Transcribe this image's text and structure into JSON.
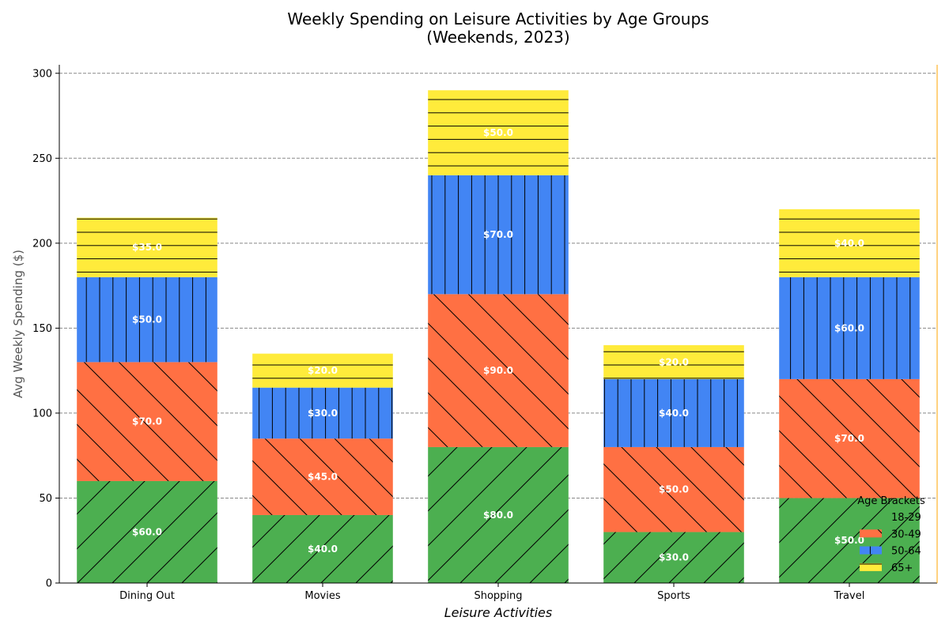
{
  "chart_data": {
    "type": "bar",
    "stacked": true,
    "title": "Weekly Spending on Leisure Activities by Age Groups",
    "subtitle": "(Weekends, 2023)",
    "xlabel": "Leisure Activities",
    "ylabel": "Avg Weekly Spending ($)",
    "ylim": [
      0,
      305
    ],
    "yticks": [
      0,
      50,
      100,
      150,
      200,
      250,
      300
    ],
    "grid": "horizontal-dashed",
    "legend_title": "Age Brackets",
    "legend_position": "lower-right",
    "categories": [
      "Dining Out",
      "Movies",
      "Shopping",
      "Sports",
      "Travel"
    ],
    "series": [
      {
        "name": "18-29",
        "values": [
          60,
          40,
          80,
          30,
          50
        ],
        "color": "#4CAF50",
        "hatch": "forward-diagonal"
      },
      {
        "name": "30-49",
        "values": [
          70,
          45,
          90,
          50,
          70
        ],
        "color": "#FF7043",
        "hatch": "back-diagonal"
      },
      {
        "name": "50-64",
        "values": [
          50,
          30,
          70,
          40,
          60
        ],
        "color": "#4285F4",
        "hatch": "vertical"
      },
      {
        "name": "65+",
        "values": [
          35,
          20,
          50,
          20,
          40
        ],
        "color": "#FFEB3B",
        "hatch": "horizontal"
      }
    ],
    "data_labels": [
      [
        "$60.0",
        "$40.0",
        "$80.0",
        "$30.0",
        "$50.0"
      ],
      [
        "$70.0",
        "$45.0",
        "$90.0",
        "$50.0",
        "$70.0"
      ],
      [
        "$50.0",
        "$30.0",
        "$70.0",
        "$40.0",
        "$60.0"
      ],
      [
        "$35.0",
        "$20.0",
        "$50.0",
        "$20.0",
        "$40.0"
      ]
    ]
  }
}
